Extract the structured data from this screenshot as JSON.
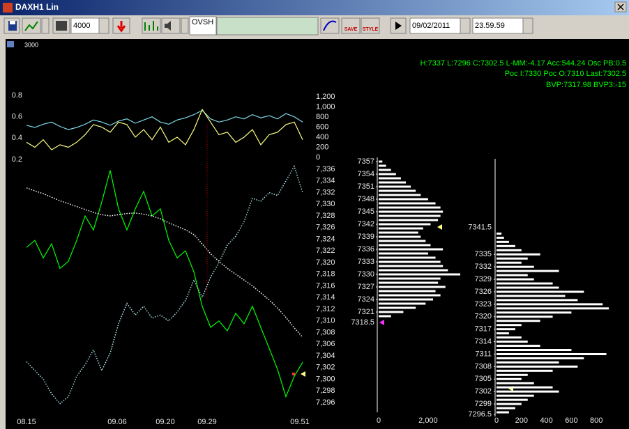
{
  "window": {
    "title": "DAXH1 Lin"
  },
  "toolbar": {
    "quantity": "4000",
    "symbol": "OVSH",
    "date": "09/02/2011",
    "time": "23.59.59",
    "save": "SAVE",
    "style": "STYLE"
  },
  "indicator_label": "3000",
  "info": [
    "H:7337 L:7296 C:7302.5 L-MM:-4.17 Acc:544.24 Osc PB:0.5",
    "Poc I:7330 Poc O:7310 Last:7302.5",
    "BVP:7317.98 BVP3:-15"
  ],
  "chart_data": [
    {
      "type": "line",
      "x": [
        0,
        12,
        24,
        36,
        48,
        60,
        72,
        84,
        96,
        108,
        120,
        132,
        144,
        156,
        168,
        180,
        192,
        204,
        216,
        228,
        240,
        252,
        264,
        276,
        288,
        300,
        312,
        324,
        336,
        348,
        360,
        372,
        384,
        396
      ],
      "xlim": [
        0,
        396
      ],
      "ylim": [
        0.2,
        0.8
      ],
      "yticks": [
        0.8,
        0.6,
        0.4,
        0.2
      ],
      "y2lim": [
        0,
        1200
      ],
      "y2ticks": [
        {
          "value": 1200,
          "label": "1,200"
        },
        {
          "value": 1000,
          "label": "1,000"
        },
        800,
        600,
        400,
        200,
        0
      ],
      "series": [
        {
          "color": "#7fd8e8",
          "values": [
            0.52,
            0.5,
            0.53,
            0.55,
            0.51,
            0.48,
            0.5,
            0.53,
            0.57,
            0.55,
            0.52,
            0.56,
            0.58,
            0.54,
            0.57,
            0.6,
            0.55,
            0.53,
            0.57,
            0.59,
            0.62,
            0.66,
            0.58,
            0.55,
            0.57,
            0.6,
            0.58,
            0.62,
            0.59,
            0.61,
            0.58,
            0.63,
            0.6,
            0.55
          ]
        },
        {
          "color": "#ffff80",
          "axis": "y2",
          "values": [
            300,
            200,
            350,
            150,
            250,
            200,
            300,
            450,
            650,
            600,
            500,
            700,
            650,
            400,
            550,
            350,
            600,
            300,
            400,
            250,
            550,
            950,
            700,
            450,
            500,
            300,
            400,
            550,
            250,
            450,
            500,
            650,
            700,
            350
          ]
        }
      ]
    },
    {
      "type": "line",
      "x": [
        0,
        12,
        24,
        36,
        48,
        60,
        72,
        84,
        96,
        108,
        120,
        132,
        144,
        156,
        168,
        180,
        192,
        204,
        216,
        228,
        240,
        252,
        264,
        276,
        288,
        300,
        312,
        324,
        336,
        348,
        360,
        372,
        384,
        396
      ],
      "xlim": [
        0,
        396
      ],
      "xticks": [
        {
          "value": 0,
          "label": "08.15"
        },
        {
          "value": 130,
          "label": "09.06"
        },
        {
          "value": 199,
          "label": "09.20"
        },
        {
          "value": 259,
          "label": "09.29"
        },
        {
          "value": 392,
          "label": "09.51"
        }
      ],
      "ylim": [
        7295,
        7337.5
      ],
      "yticks": [
        {
          "value": 7336,
          "label": "7,336"
        },
        {
          "value": 7334,
          "label": "7,334"
        },
        {
          "value": 7332,
          "label": "7,332"
        },
        {
          "value": 7330,
          "label": "7,330"
        },
        {
          "value": 7328,
          "label": "7,328"
        },
        {
          "value": 7326,
          "label": "7,326"
        },
        {
          "value": 7324,
          "label": "7,324"
        },
        {
          "value": 7322,
          "label": "7,322"
        },
        {
          "value": 7320,
          "label": "7,320"
        },
        {
          "value": 7318,
          "label": "7,318"
        },
        {
          "value": 7316,
          "label": "7,316"
        },
        {
          "value": 7314,
          "label": "7,314"
        },
        {
          "value": 7312,
          "label": "7,312"
        },
        {
          "value": 7310,
          "label": "7,310"
        },
        {
          "value": 7308,
          "label": "7,308"
        },
        {
          "value": 7306,
          "label": "7,306"
        },
        {
          "value": 7304,
          "label": "7,304"
        },
        {
          "value": 7302,
          "label": "7,302"
        },
        {
          "value": 7300,
          "label": "7,300"
        },
        {
          "value": 7298,
          "label": "7,298"
        },
        {
          "value": 7296,
          "label": "7,296"
        }
      ],
      "series": [
        {
          "color": "#00ff00",
          "values": [
            7322.6,
            7323.8,
            7320.8,
            7323.2,
            7319.0,
            7320.2,
            7323.8,
            7328.0,
            7325.6,
            7330.4,
            7335.8,
            7329.2,
            7325.6,
            7329.2,
            7332.2,
            7328.0,
            7329.2,
            7323.8,
            7320.8,
            7322.0,
            7318.4,
            7312.5,
            7308.9,
            7310.0,
            7308.3,
            7311.3,
            7309.5,
            7312.5,
            7308.9,
            7305.3,
            7301.7,
            7297.0,
            7300.5,
            7302.9
          ]
        },
        {
          "color": "#ffffff",
          "dash": "dotted",
          "values": [
            7332.8,
            7332.3,
            7331.8,
            7331.2,
            7330.6,
            7330.1,
            7329.6,
            7329.1,
            7328.6,
            7328.2,
            7328.0,
            7328.2,
            7328.4,
            7328.5,
            7328.3,
            7328.0,
            7327.5,
            7326.8,
            7326.2,
            7325.6,
            7324.8,
            7323.2,
            7321.5,
            7320.2,
            7319.0,
            7318.0,
            7317.0,
            7316.0,
            7314.8,
            7313.6,
            7312.2,
            7310.6,
            7308.8,
            7307.2
          ]
        },
        {
          "color": "#a8e0e8",
          "dash": "dotted",
          "values": [
            7303.0,
            7301.5,
            7300.0,
            7297.5,
            7295.8,
            7297.0,
            7300.5,
            7302.5,
            7305.0,
            7301.5,
            7304.5,
            7309.5,
            7313.0,
            7311.0,
            7312.5,
            7310.5,
            7311.0,
            7310.0,
            7311.5,
            7313.5,
            7317.0,
            7314.0,
            7317.5,
            7320.0,
            7323.0,
            7324.5,
            7327.0,
            7331.0,
            7330.5,
            7332.0,
            7331.5,
            7334.0,
            7336.5,
            7332.0
          ]
        }
      ]
    },
    {
      "type": "bar",
      "orientation": "horizontal",
      "color": "#ffffff",
      "prices": [
        7357,
        7356,
        7355,
        7354,
        7353,
        7352,
        7351,
        7350,
        7349,
        7348,
        7347,
        7346,
        7345,
        7344,
        7343,
        7342,
        7341,
        7340,
        7339,
        7338,
        7337,
        7336,
        7335,
        7334,
        7333,
        7332,
        7331,
        7330,
        7329,
        7328,
        7327,
        7326,
        7325,
        7324,
        7323,
        7322,
        7321,
        7320
      ],
      "values": [
        150,
        300,
        500,
        700,
        900,
        1100,
        1300,
        1500,
        1700,
        2000,
        2300,
        2500,
        2600,
        2500,
        2400,
        2100,
        1800,
        1600,
        1700,
        1900,
        2100,
        2600,
        2000,
        2300,
        2500,
        2600,
        2800,
        3300,
        2500,
        2400,
        2700,
        2300,
        2500,
        2200,
        1900,
        1500,
        1000,
        500
      ],
      "xlim": [
        0,
        3300
      ],
      "xticks": [
        0,
        {
          "value": 2000,
          "label": "2,000"
        }
      ],
      "ylim": [
        7297,
        7358
      ],
      "yticks": [
        7357,
        7354,
        7351,
        7348,
        7345,
        7342,
        7339,
        7336,
        7333,
        7330,
        7327,
        7324,
        7321
      ],
      "markers": [
        7318.5
      ]
    },
    {
      "type": "bar",
      "orientation": "horizontal",
      "color": "#ffffff",
      "prices": [
        7340,
        7339,
        7338,
        7337,
        7336,
        7335,
        7334,
        7333,
        7332,
        7331,
        7330,
        7329,
        7328,
        7327,
        7326,
        7325,
        7324,
        7323,
        7322,
        7321,
        7320,
        7319,
        7318,
        7317,
        7316,
        7315,
        7314,
        7313,
        7312,
        7311,
        7310,
        7309,
        7308,
        7307,
        7306,
        7305,
        7304,
        7303,
        7302,
        7301,
        7300,
        7299,
        7298,
        7297
      ],
      "values": [
        40,
        60,
        100,
        150,
        200,
        350,
        250,
        200,
        300,
        500,
        250,
        300,
        450,
        500,
        700,
        550,
        650,
        850,
        900,
        600,
        450,
        350,
        200,
        150,
        100,
        200,
        250,
        350,
        600,
        880,
        700,
        500,
        650,
        450,
        250,
        200,
        300,
        450,
        500,
        300,
        250,
        200,
        150,
        100
      ],
      "xlim": [
        0,
        1050
      ],
      "xticks": [
        0,
        200,
        400,
        600,
        800
      ],
      "ylim": [
        7296,
        7358
      ],
      "yticks": [
        7335,
        7332,
        7329,
        7326,
        7323,
        7320,
        7317,
        7314,
        7311,
        7308,
        7305,
        7302,
        7299,
        7296.5
      ],
      "markers": [
        7341.5
      ]
    }
  ]
}
